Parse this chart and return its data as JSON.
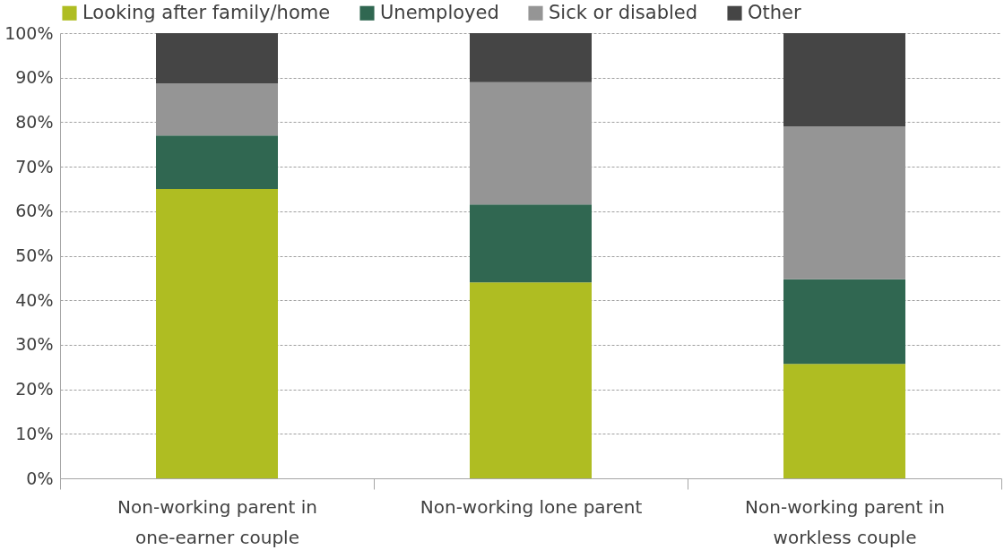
{
  "chart_data": {
    "type": "bar",
    "stacked": true,
    "categories": [
      "Non-working parent in one-earner couple",
      "Non-working lone parent",
      "Non-working parent in workless couple"
    ],
    "series": [
      {
        "name": "Looking after family/home",
        "color": "#afbd22",
        "values": [
          65,
          44,
          25.7
        ]
      },
      {
        "name": "Unemployed",
        "color": "#306751",
        "values": [
          12,
          17.5,
          19
        ]
      },
      {
        "name": "Sick or disabled",
        "color": "#959595",
        "values": [
          11.7,
          27.5,
          34.3
        ]
      },
      {
        "name": "Other",
        "color": "#454545",
        "values": [
          11.3,
          11,
          21
        ]
      }
    ],
    "ylim": [
      0,
      100
    ],
    "yticks": [
      {
        "value": 0,
        "label": "0%"
      },
      {
        "value": 10,
        "label": "10%"
      },
      {
        "value": 20,
        "label": "20%"
      },
      {
        "value": 30,
        "label": "30%"
      },
      {
        "value": 40,
        "label": "40%"
      },
      {
        "value": 50,
        "label": "50%"
      },
      {
        "value": 60,
        "label": "60%"
      },
      {
        "value": 70,
        "label": "70%"
      },
      {
        "value": 80,
        "label": "80%"
      },
      {
        "value": 90,
        "label": "90%"
      },
      {
        "value": 100,
        "label": "100%"
      }
    ],
    "grid": "y",
    "legend": "top"
  }
}
